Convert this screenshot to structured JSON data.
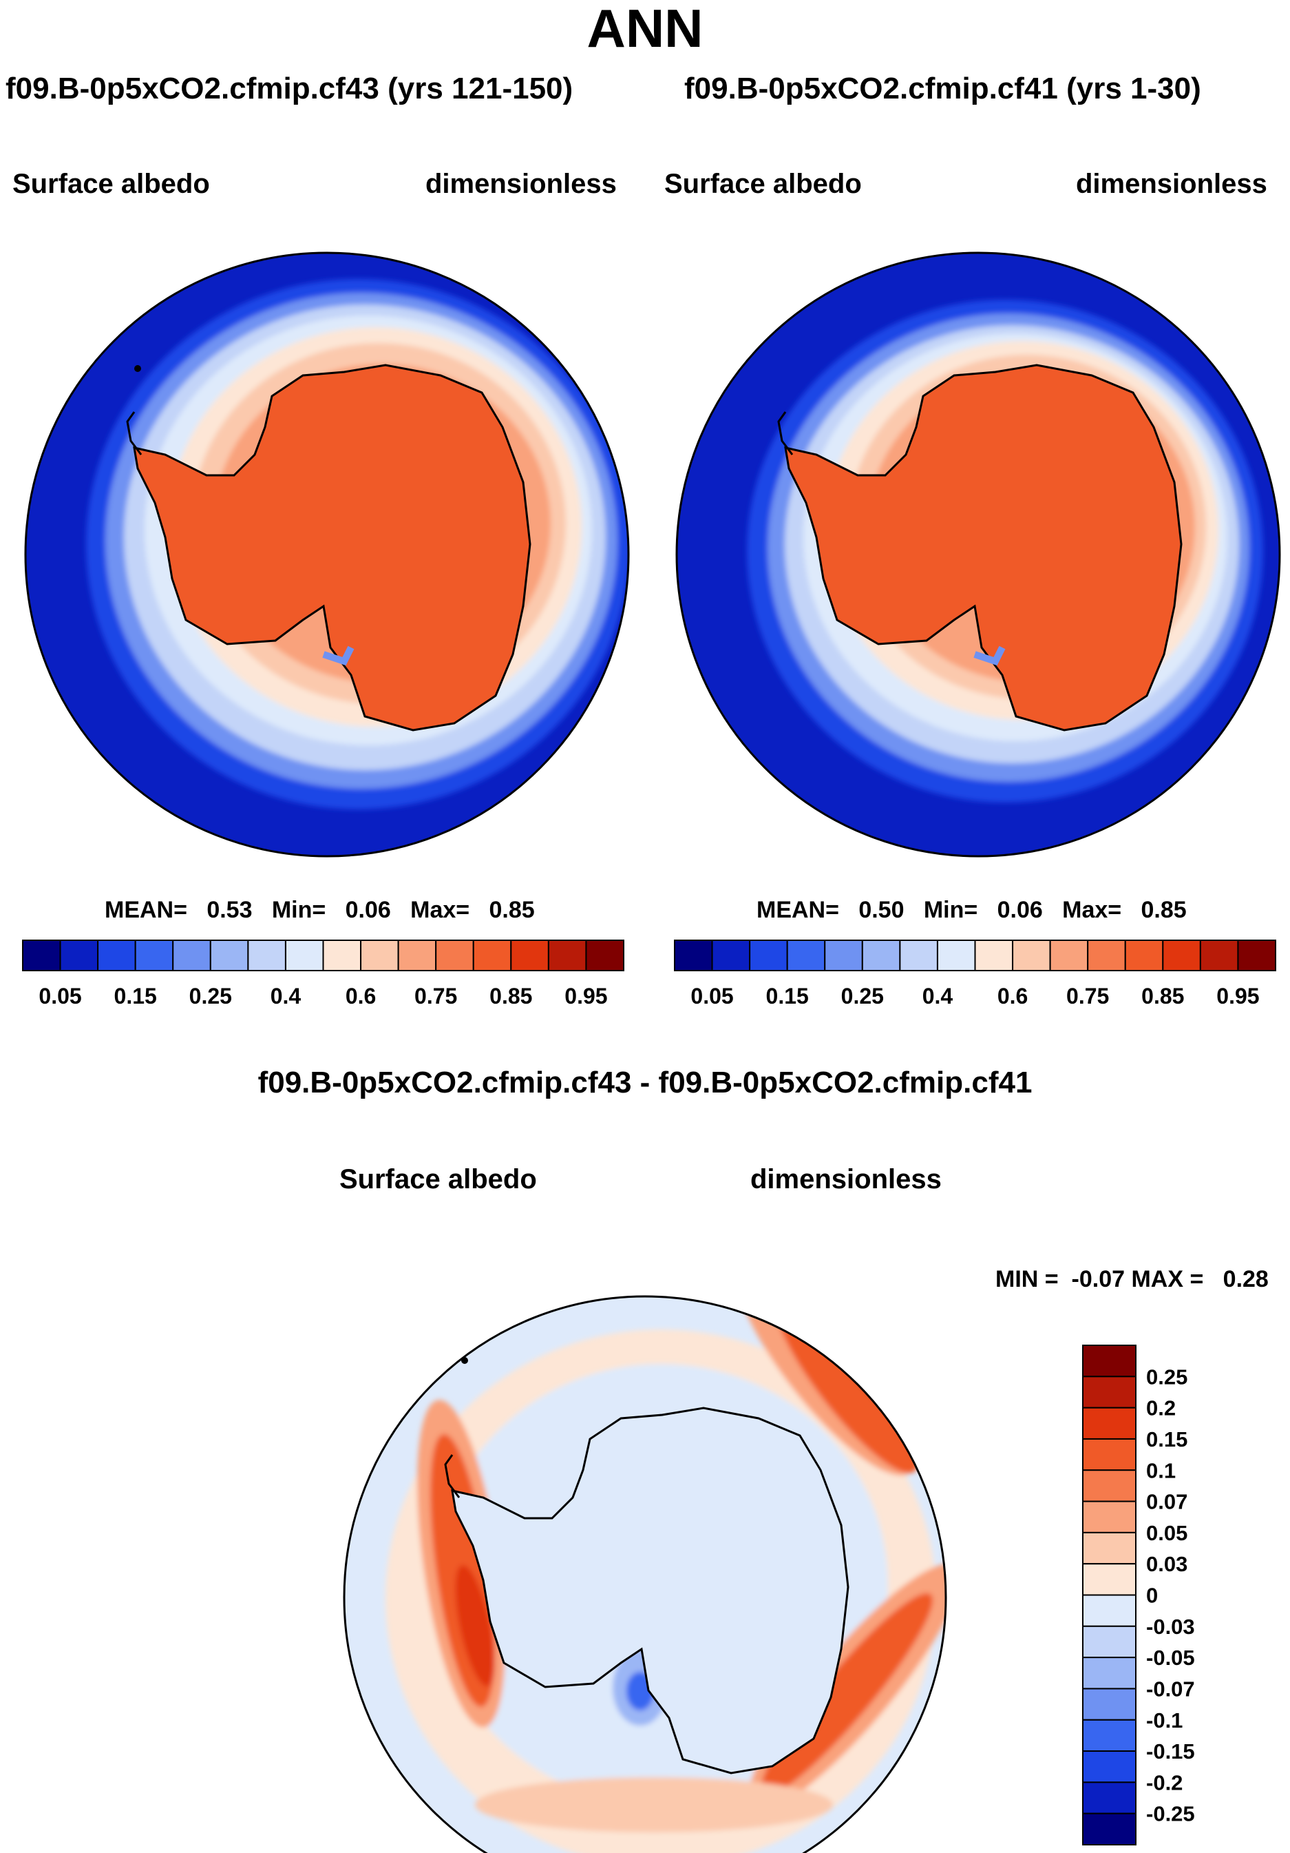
{
  "figure": {
    "title": "ANN",
    "colors": {
      "blues": [
        "#00007f",
        "#0a1fc2",
        "#1e47e6",
        "#3866f0",
        "#6f92f2",
        "#9bb6f5",
        "#c3d4f8",
        "#deeafb"
      ],
      "reds": [
        "#fde6d6",
        "#fbc9ad",
        "#f9a27c",
        "#f57a4c",
        "#f05a28",
        "#e1360e",
        "#b81b08",
        "#7f0000"
      ],
      "coast": "#000000"
    }
  },
  "panels": {
    "left": {
      "case_title": "f09.B-0p5xCO2.cfmip.cf43 (yrs 121-150)",
      "variable": "Surface albedo",
      "units": "dimensionless",
      "stats": {
        "mean_label": "MEAN=",
        "mean": "0.53",
        "min_label": "Min=",
        "min": "0.06",
        "max_label": "Max=",
        "max": "0.85"
      }
    },
    "right": {
      "case_title": "f09.B-0p5xCO2.cfmip.cf41 (yrs 1-30)",
      "variable": "Surface albedo",
      "units": "dimensionless",
      "stats": {
        "mean_label": "MEAN=",
        "mean": "0.50",
        "min_label": "Min=",
        "min": "0.06",
        "max_label": "Max=",
        "max": "0.85"
      }
    },
    "diff": {
      "case_title": "f09.B-0p5xCO2.cfmip.cf43 - f09.B-0p5xCO2.cfmip.cf41",
      "variable": "Surface albedo",
      "units": "dimensionless",
      "stats_text": "MIN =  -0.07 MAX =   0.28"
    }
  },
  "colorbars": {
    "absolute_labels": [
      "0.05",
      "0.15",
      "0.25",
      "0.4",
      "0.6",
      "0.75",
      "0.85",
      "0.95"
    ],
    "diff_labels": [
      "0.25",
      "0.2",
      "0.15",
      "0.1",
      "0.07",
      "0.05",
      "0.03",
      "0",
      "-0.03",
      "-0.05",
      "-0.07",
      "-0.1",
      "-0.15",
      "-0.2",
      "-0.25"
    ]
  }
}
